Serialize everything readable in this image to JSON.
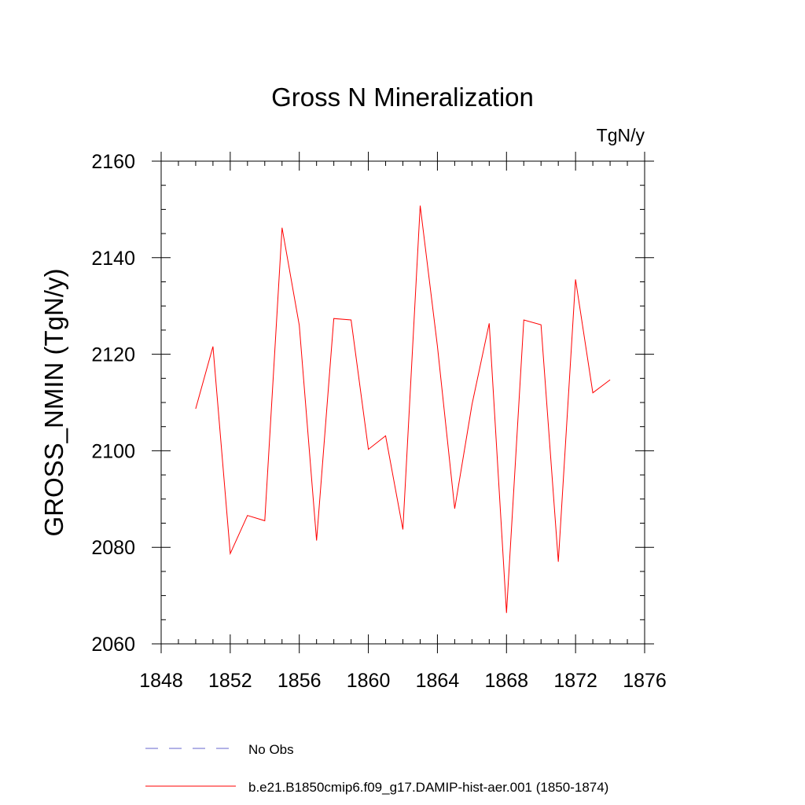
{
  "chart_data": {
    "type": "line",
    "title": "Gross N Mineralization",
    "units": "TgN/y",
    "ylabel": "GROSS_NMIN  (TgN/y)",
    "xlabel": "",
    "xlim": [
      1848,
      1876
    ],
    "ylim": [
      2060,
      2160
    ],
    "x_ticks": [
      1848,
      1852,
      1856,
      1860,
      1864,
      1868,
      1872,
      1876
    ],
    "y_ticks": [
      2060,
      2080,
      2100,
      2120,
      2140,
      2160
    ],
    "x_minor_step": 1,
    "y_minor_step": 5,
    "grid": false,
    "legend_position": "bottom",
    "series": [
      {
        "name": "b.e21.B1850cmip6.f09_g17.DAMIP-hist-aer.001 (1850-1874)",
        "color": "#ff0000",
        "style": "solid",
        "x": [
          1850,
          1851,
          1852,
          1853,
          1854,
          1855,
          1856,
          1857,
          1858,
          1859,
          1860,
          1861,
          1862,
          1863,
          1864,
          1865,
          1866,
          1867,
          1868,
          1869,
          1870,
          1871,
          1872,
          1873,
          1874
        ],
        "values": [
          2108.7,
          2121.6,
          2078.7,
          2086.6,
          2085.5,
          2146.2,
          2126.0,
          2081.4,
          2127.4,
          2127.1,
          2100.3,
          2103.1,
          2083.7,
          2150.8,
          2121.7,
          2088.0,
          2109.6,
          2126.4,
          2066.4,
          2127.1,
          2126.1,
          2077.0,
          2135.5,
          2112.0,
          2114.7
        ]
      }
    ],
    "legend": [
      {
        "label": "No Obs",
        "color": "#6666cc",
        "style": "dashed"
      },
      {
        "label": "b.e21.B1850cmip6.f09_g17.DAMIP-hist-aer.001 (1850-1874)",
        "color": "#ff0000",
        "style": "solid"
      }
    ]
  }
}
